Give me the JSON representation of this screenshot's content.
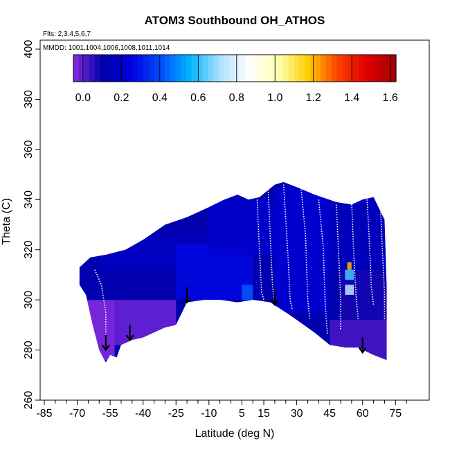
{
  "chart_data": {
    "type": "heatmap",
    "title": "ATOM3 Southbound OH_ATHOS",
    "annotations": {
      "flights": "Flts: 2,3,4,5,6,7",
      "dates": "MMDD: 1001,1004,1006,1008,1011,1014"
    },
    "xlabel": "Latitude (deg N)",
    "ylabel": "Theta (C)",
    "xlim": [
      -85,
      85
    ],
    "ylim": [
      260,
      405
    ],
    "x_ticks": [
      -85,
      -70,
      -55,
      -40,
      -25,
      -10,
      5,
      15,
      30,
      45,
      60,
      75
    ],
    "x_minor_ticks": [
      -80,
      -75,
      -65,
      -60,
      -50,
      -45,
      -35,
      -30,
      -20,
      -15,
      -5,
      0,
      10,
      20,
      25,
      35,
      40,
      50,
      55,
      65,
      70,
      80
    ],
    "y_ticks": [
      260,
      280,
      300,
      320,
      340,
      360,
      380,
      400
    ],
    "colorbar": {
      "ticks": [
        0.0,
        0.2,
        0.4,
        0.6,
        0.8,
        1.0,
        1.2,
        1.4,
        1.6
      ],
      "tick_labels": [
        "0.0",
        "0.2",
        "0.4",
        "0.6",
        "0.8",
        "1.0",
        "1.2",
        "1.4",
        "1.6"
      ],
      "range": [
        -0.05,
        1.63
      ],
      "colors": [
        "#8a2be2",
        "#0000a8",
        "#0000e0",
        "#0050ff",
        "#00b8ff",
        "#b0e0ff",
        "#ffffff",
        "#ffffb0",
        "#ffd000",
        "#ff4000",
        "#e00000",
        "#a00000"
      ]
    },
    "top_boundary": [
      [
        -69,
        313
      ],
      [
        -64,
        317
      ],
      [
        -57,
        318
      ],
      [
        -48,
        320
      ],
      [
        -40,
        324
      ],
      [
        -30,
        330
      ],
      [
        -20,
        333
      ],
      [
        -10,
        337
      ],
      [
        -3,
        340
      ],
      [
        3,
        342
      ],
      [
        8,
        340
      ],
      [
        13,
        341
      ],
      [
        20,
        346
      ],
      [
        24,
        347
      ],
      [
        30,
        345
      ],
      [
        38,
        342
      ],
      [
        48,
        339
      ],
      [
        55,
        338
      ],
      [
        60,
        340
      ],
      [
        65,
        341
      ],
      [
        70,
        332
      ],
      [
        71,
        305
      ]
    ],
    "bottom_boundary": [
      [
        71,
        305
      ],
      [
        71,
        276
      ],
      [
        65,
        278
      ],
      [
        58,
        281
      ],
      [
        52,
        281
      ],
      [
        45,
        282
      ],
      [
        38,
        287
      ],
      [
        30,
        292
      ],
      [
        25,
        295
      ],
      [
        18,
        299
      ],
      [
        10,
        300
      ],
      [
        3,
        299
      ],
      [
        -5,
        300
      ],
      [
        -12,
        300
      ],
      [
        -20,
        299
      ],
      [
        -25,
        290
      ],
      [
        -30,
        289
      ],
      [
        -35,
        287
      ],
      [
        -40,
        285
      ],
      [
        -45,
        284
      ],
      [
        -50,
        282
      ],
      [
        -52,
        277
      ],
      [
        -55,
        278
      ],
      [
        -57,
        275
      ],
      [
        -60,
        280
      ],
      [
        -63,
        290
      ],
      [
        -66,
        302
      ],
      [
        -69,
        306
      ]
    ],
    "regions": [
      {
        "lat": [
          -68,
          -53
        ],
        "theta": [
          276,
          300
        ],
        "value": -0.05
      },
      {
        "lat": [
          -53,
          -25
        ],
        "theta": [
          282,
          300
        ],
        "value": -0.02
      },
      {
        "lat": [
          -68,
          -25
        ],
        "theta": [
          300,
          312
        ],
        "value": 0.12
      },
      {
        "lat": [
          -60,
          -10
        ],
        "theta": [
          312,
          325
        ],
        "value": 0.17
      },
      {
        "lat": [
          -25,
          10
        ],
        "theta": [
          300,
          322
        ],
        "value": 0.27
      },
      {
        "lat": [
          -10,
          20
        ],
        "theta": [
          318,
          340
        ],
        "value": 0.2
      },
      {
        "lat": [
          20,
          45
        ],
        "theta": [
          295,
          345
        ],
        "value": 0.22
      },
      {
        "lat": [
          45,
          71
        ],
        "theta": [
          276,
          292
        ],
        "value": 0.02
      },
      {
        "lat": [
          50,
          71
        ],
        "theta": [
          292,
          312
        ],
        "value": 0.08
      },
      {
        "lat": [
          45,
          71
        ],
        "theta": [
          312,
          341
        ],
        "value": 0.16
      },
      {
        "lat": [
          52,
          56
        ],
        "theta": [
          302,
          306
        ],
        "value": 0.75
      },
      {
        "lat": [
          53,
          55
        ],
        "theta": [
          312,
          315
        ],
        "value": 1.2
      },
      {
        "lat": [
          52,
          56
        ],
        "theta": [
          308,
          312
        ],
        "value": 0.62
      },
      {
        "lat": [
          5,
          10
        ],
        "theta": [
          300,
          306
        ],
        "value": 0.42
      }
    ],
    "profile_traces": [
      {
        "lat": [
          -62,
          -59,
          -57,
          -57
        ],
        "theta": [
          312,
          306,
          295,
          282
        ]
      },
      {
        "lat": [
          12,
          13,
          14,
          15
        ],
        "theta": [
          340,
          320,
          303,
          300
        ]
      },
      {
        "lat": [
          17,
          18,
          19,
          20
        ],
        "theta": [
          344,
          324,
          305,
          299
        ]
      },
      {
        "lat": [
          24,
          26,
          27,
          28
        ],
        "theta": [
          346,
          318,
          300,
          296
        ]
      },
      {
        "lat": [
          32,
          34,
          35,
          36
        ],
        "theta": [
          344,
          326,
          300,
          292
        ]
      },
      {
        "lat": [
          40,
          42,
          43,
          44
        ],
        "theta": [
          340,
          322,
          298,
          286
        ]
      },
      {
        "lat": [
          48,
          49,
          50,
          50
        ],
        "theta": [
          338,
          320,
          300,
          288
        ]
      },
      {
        "lat": [
          55,
          56,
          57,
          58
        ],
        "theta": [
          339,
          318,
          302,
          292
        ]
      },
      {
        "lat": [
          62,
          63,
          64,
          65
        ],
        "theta": [
          341,
          325,
          305,
          298
        ]
      },
      {
        "lat": [
          68,
          69,
          70,
          70
        ],
        "theta": [
          340,
          320,
          302,
          292
        ]
      }
    ],
    "arrows": [
      {
        "lat": -57,
        "theta": 280
      },
      {
        "lat": -46,
        "theta": 284
      },
      {
        "lat": -20,
        "theta": 299
      },
      {
        "lat": 20,
        "theta": 298
      },
      {
        "lat": 60,
        "theta": 279
      }
    ]
  }
}
